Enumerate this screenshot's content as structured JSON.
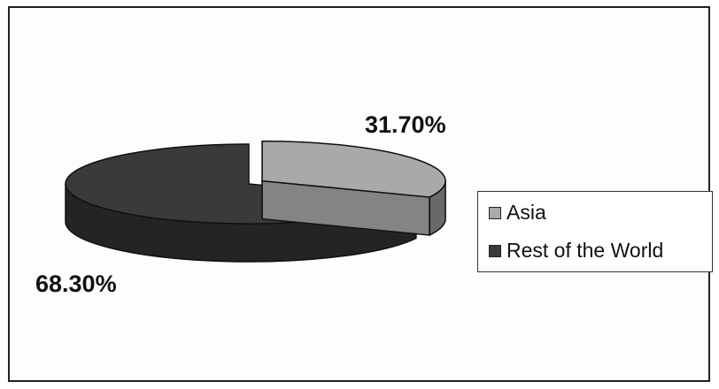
{
  "chart_data": {
    "type": "pie",
    "style": "3d-exploded",
    "categories": [
      "Asia",
      "Rest of the World"
    ],
    "values": [
      31.7,
      68.3
    ],
    "value_labels": [
      "31.70%",
      "68.30%"
    ],
    "colors": [
      "#a9a9a9",
      "#3a3a3a"
    ],
    "title": "",
    "legend": {
      "position": "right",
      "entries": [
        "Asia",
        "Rest of the World"
      ]
    }
  }
}
